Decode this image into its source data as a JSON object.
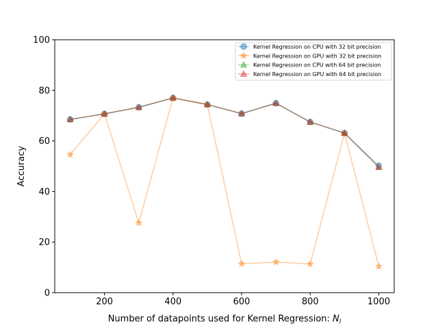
{
  "chart_data": {
    "type": "line",
    "xlabel": "Number of datapoints used for Kernel Regression: ",
    "xlabel_math": "N",
    "xlabel_math_sub": "l",
    "ylabel": "Accuracy",
    "xlim": [
      55,
      1045
    ],
    "ylim": [
      0,
      100
    ],
    "xticks": [
      200,
      400,
      600,
      800,
      1000
    ],
    "yticks": [
      0,
      20,
      40,
      60,
      80,
      100
    ],
    "grid": false,
    "legend_position": "top-right",
    "x": [
      100,
      200,
      300,
      400,
      500,
      600,
      700,
      800,
      900,
      1000
    ],
    "series": [
      {
        "name": "Kernel Regression on CPU with 32 bit precision",
        "color": "#1f77b4",
        "marker": "circle",
        "values": [
          68.5,
          70.7,
          73.3,
          77.0,
          74.4,
          70.8,
          74.9,
          67.5,
          63.1,
          50.2
        ]
      },
      {
        "name": "Kernel Regression on GPU with 32 bit precision",
        "color": "#ff7f0e",
        "marker": "star",
        "values": [
          54.6,
          70.7,
          27.6,
          77.0,
          74.4,
          11.4,
          12.1,
          11.3,
          63.1,
          10.4
        ]
      },
      {
        "name": "Kernel Regression on CPU with 64 bit precision",
        "color": "#2ca02c",
        "marker": "triangle",
        "values": [
          68.5,
          70.7,
          73.3,
          77.0,
          74.4,
          70.8,
          74.9,
          67.5,
          63.1,
          49.6
        ]
      },
      {
        "name": "Kernel Regression on GPU with 64 bit precision",
        "color": "#d62728",
        "marker": "triangle",
        "values": [
          68.5,
          70.7,
          73.3,
          77.0,
          74.4,
          70.8,
          74.9,
          67.5,
          63.1,
          49.6
        ]
      }
    ]
  }
}
